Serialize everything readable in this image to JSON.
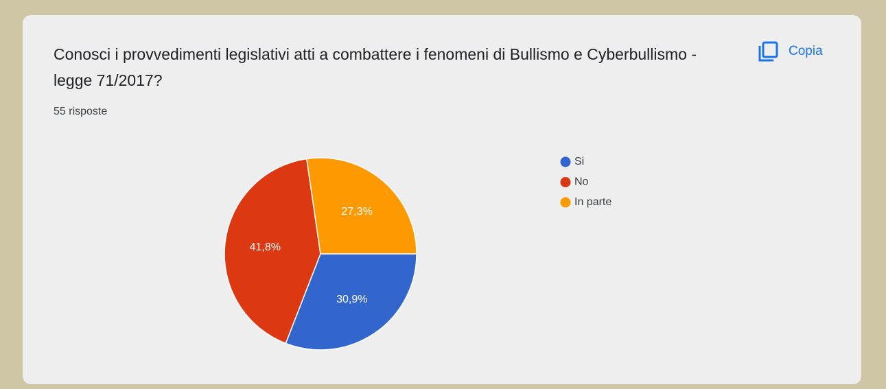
{
  "copy_button": "Copia",
  "chart_data": {
    "type": "pie",
    "title": "Conosci i provvedimenti legislativi atti a combattere i  fenomeni di Bullismo e Cyberbullismo -  legge 71/2017?",
    "subtitle": "55 risposte",
    "categories": [
      "Si",
      "No",
      "In parte"
    ],
    "values": [
      30.9,
      41.8,
      27.3
    ],
    "value_labels": [
      "30,9%",
      "41,8%",
      "27,3%"
    ],
    "colors": [
      "#3366cc",
      "#dc3912",
      "#ff9900"
    ],
    "legend": "right"
  }
}
